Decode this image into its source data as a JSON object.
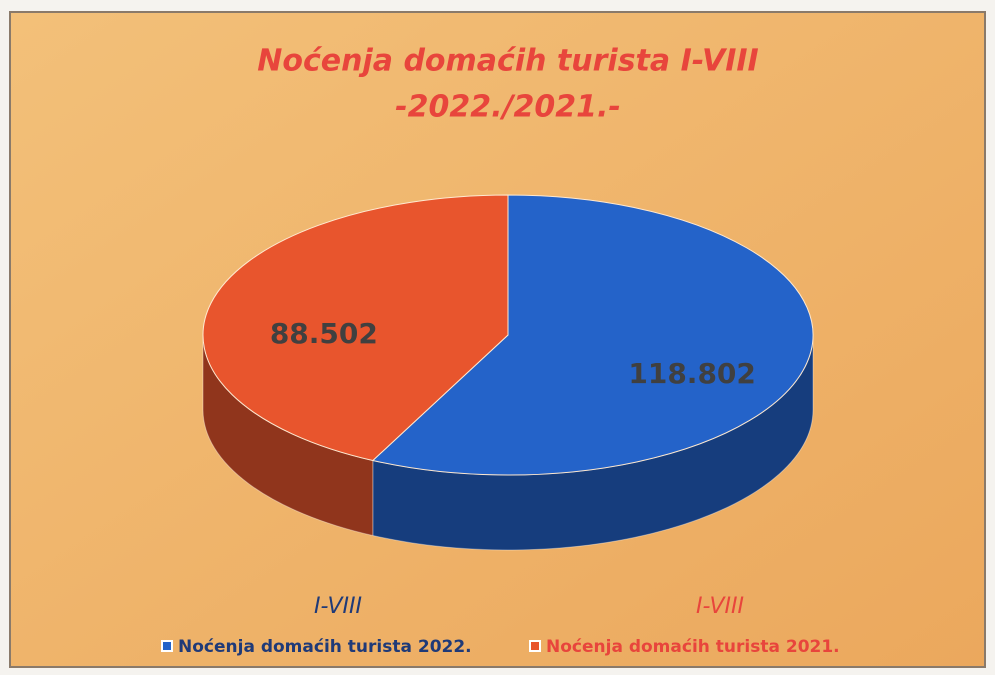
{
  "chart_data": {
    "type": "pie",
    "title": "Noćenja domaćih turista I-VIII",
    "subtitle": "-2022./2021.-",
    "categories": [
      "Noćenja domaćih turista 2022.",
      "Noćenja domaćih turista 2021."
    ],
    "values": [
      118802,
      88502
    ],
    "value_labels": [
      "118.802",
      "88.502"
    ],
    "colors": [
      "#2463c9",
      "#e8552d"
    ],
    "period_labels": [
      "I-VIII",
      "I-VIII"
    ]
  }
}
